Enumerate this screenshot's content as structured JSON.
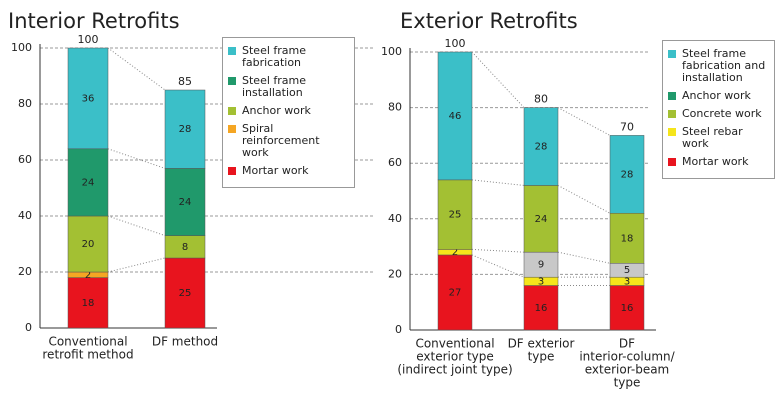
{
  "chart_data": [
    {
      "type": "stacked-bar",
      "title": "Interior Retrofits",
      "categories": [
        [
          "Conventional",
          "retrofit method"
        ],
        [
          "DF method"
        ]
      ],
      "ylim": [
        0,
        100
      ],
      "yticks": [
        0,
        20,
        40,
        60,
        80,
        100
      ],
      "grid": true,
      "totals": [
        100,
        85
      ],
      "series": [
        {
          "name": "Mortar work",
          "color": "#e8141e",
          "values": [
            18,
            25
          ]
        },
        {
          "name": "Spiral reinforcement work",
          "color": "#f5a623",
          "values": [
            2,
            null
          ]
        },
        {
          "name": "Anchor work",
          "color": "#a3c033",
          "values": [
            20,
            8
          ]
        },
        {
          "name": "Steel frame installation",
          "color": "#20996b",
          "values": [
            24,
            24
          ]
        },
        {
          "name": "Steel frame fabrication",
          "color": "#3bbfc8",
          "values": [
            36,
            28
          ]
        }
      ]
    },
    {
      "type": "stacked-bar",
      "title": "Exterior Retrofits",
      "categories": [
        [
          "Conventional",
          "exterior type",
          "(indirect joint type)"
        ],
        [
          "DF exterior",
          "type"
        ],
        [
          "DF",
          "interior-column/",
          "exterior-beam",
          "type"
        ]
      ],
      "ylim": [
        0,
        100
      ],
      "yticks": [
        0,
        20,
        40,
        60,
        80,
        100
      ],
      "grid": true,
      "totals": [
        100,
        80,
        70
      ],
      "series": [
        {
          "name": "Mortar work",
          "color": "#e8141e",
          "values": [
            27,
            16,
            16
          ]
        },
        {
          "name": "Steel rebar work",
          "color": "#f5e51b",
          "values": [
            2,
            3,
            3
          ]
        },
        {
          "color": "#c8c8c8",
          "values": [
            null,
            9,
            5
          ]
        },
        {
          "name": "Concrete work",
          "color": "#a3c033",
          "values": [
            25,
            24,
            18
          ]
        },
        {
          "name": "Anchor work",
          "color": "#20996b",
          "values": [
            null,
            null,
            null
          ]
        },
        {
          "name": "Steel frame fabrication and installation",
          "color": "#3bbfc8",
          "values": [
            46,
            28,
            28
          ]
        }
      ]
    }
  ]
}
